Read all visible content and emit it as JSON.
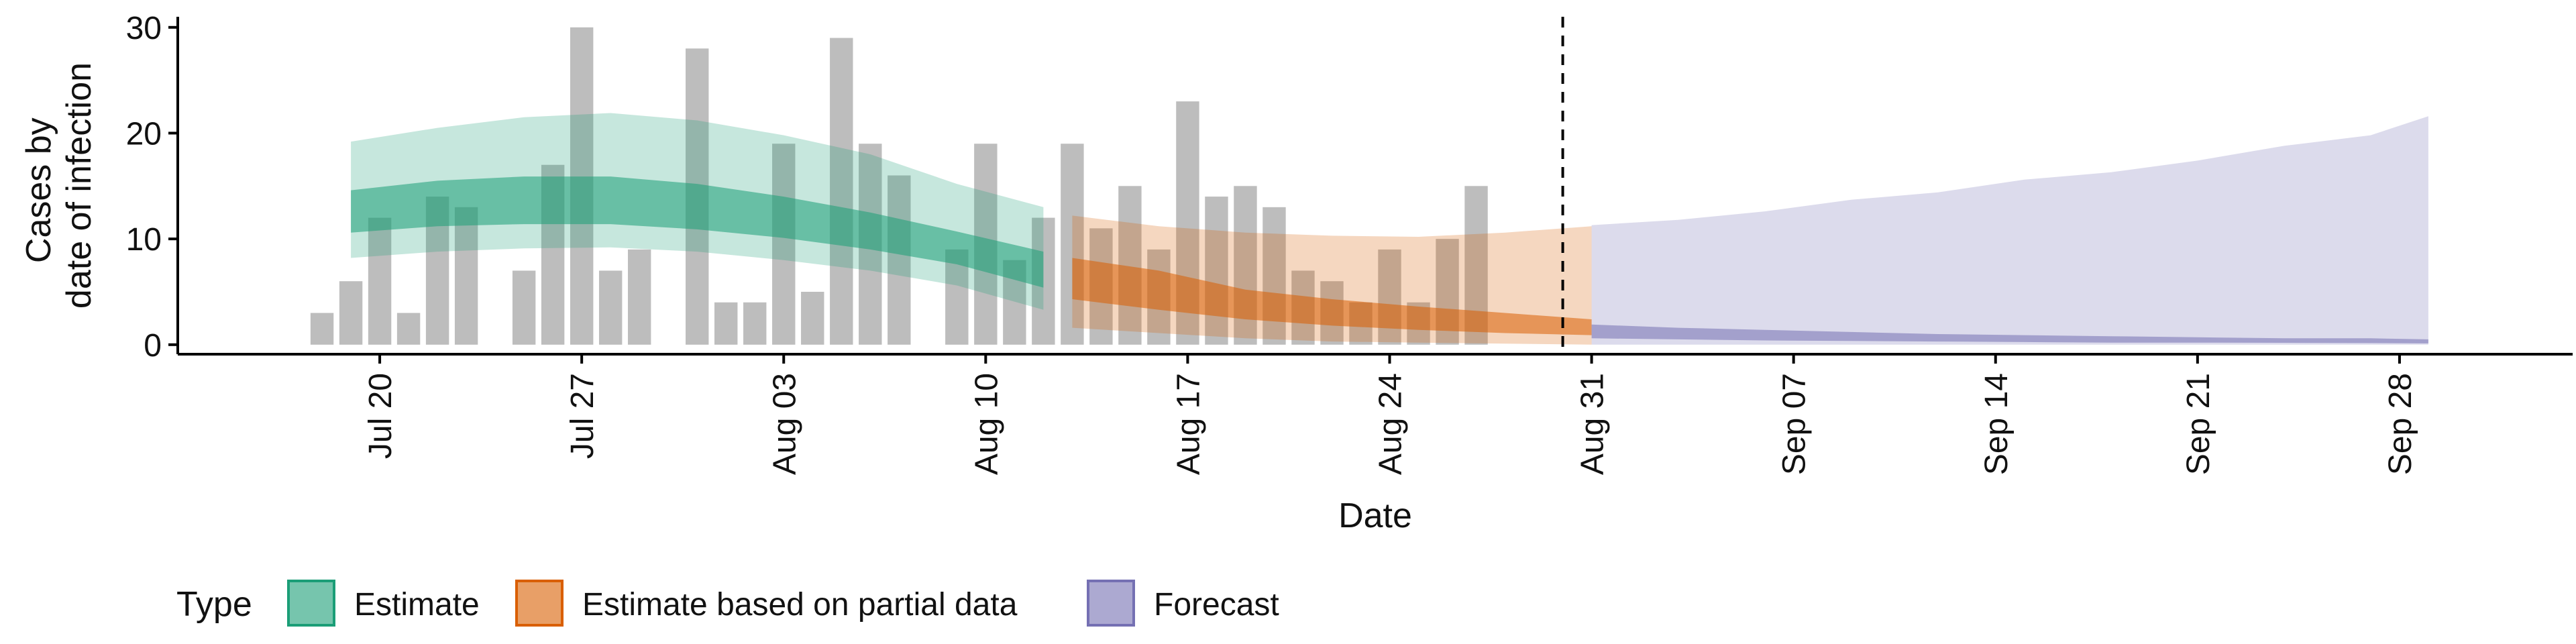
{
  "chart_data": {
    "type": "area",
    "xlabel": "Date",
    "ylabel_lines": [
      "Cases by",
      "date of infection"
    ],
    "ylim": [
      0,
      31
    ],
    "yticks": [
      0,
      10,
      20,
      30
    ],
    "x_date_start": "2020-07-16",
    "xlim_dates": [
      "2020-07-13",
      "2020-10-04"
    ],
    "xticks": [
      {
        "date": "2020-07-20",
        "label": "Jul 20"
      },
      {
        "date": "2020-07-27",
        "label": "Jul 27"
      },
      {
        "date": "2020-08-03",
        "label": "Aug 03"
      },
      {
        "date": "2020-08-10",
        "label": "Aug 10"
      },
      {
        "date": "2020-08-17",
        "label": "Aug 17"
      },
      {
        "date": "2020-08-24",
        "label": "Aug 24"
      },
      {
        "date": "2020-08-31",
        "label": "Aug 31"
      },
      {
        "date": "2020-09-07",
        "label": "Sep 07"
      },
      {
        "date": "2020-09-14",
        "label": "Sep 14"
      },
      {
        "date": "2020-09-21",
        "label": "Sep 21"
      },
      {
        "date": "2020-09-28",
        "label": "Sep 28"
      }
    ],
    "forecast_line_date": "2020-08-30",
    "bars": {
      "color": "#bdbdbd",
      "start_date": "2020-07-18",
      "values": [
        3,
        6,
        12,
        3,
        14,
        13,
        0,
        7,
        17,
        30,
        7,
        9,
        0,
        28,
        4,
        4,
        19,
        5,
        29,
        19,
        16,
        0,
        9,
        19,
        8,
        12,
        19,
        11,
        15,
        9,
        23,
        14,
        15,
        13,
        7,
        6,
        4,
        9,
        4,
        10,
        15
      ]
    },
    "series": [
      {
        "name": "Estimate",
        "color": "#1b9e77",
        "dates": [
          "2020-07-19",
          "2020-07-22",
          "2020-07-25",
          "2020-07-28",
          "2020-07-31",
          "2020-08-03",
          "2020-08-06",
          "2020-08-09",
          "2020-08-12"
        ],
        "upper90": [
          19.2,
          20.5,
          21.5,
          21.9,
          21.2,
          19.8,
          18.0,
          15.2,
          13.0
        ],
        "upper50": [
          14.6,
          15.5,
          15.9,
          15.9,
          15.2,
          14.0,
          12.5,
          10.7,
          8.8
        ],
        "lower50": [
          10.6,
          11.2,
          11.4,
          11.4,
          10.9,
          10.1,
          9.0,
          7.6,
          5.4
        ],
        "lower90": [
          8.2,
          8.8,
          9.1,
          9.2,
          8.8,
          8.0,
          7.0,
          5.6,
          3.3
        ]
      },
      {
        "name": "Estimate based on partial data",
        "color": "#d95f02",
        "dates": [
          "2020-08-13",
          "2020-08-16",
          "2020-08-19",
          "2020-08-22",
          "2020-08-25",
          "2020-08-28",
          "2020-08-31"
        ],
        "upper90": [
          12.2,
          11.2,
          10.6,
          10.3,
          10.2,
          10.6,
          11.2
        ],
        "upper50": [
          8.2,
          7.0,
          5.2,
          4.3,
          3.6,
          3.0,
          2.4
        ],
        "lower50": [
          4.3,
          3.3,
          2.4,
          1.8,
          1.4,
          1.1,
          0.9
        ],
        "lower90": [
          1.6,
          1.1,
          0.6,
          0.3,
          0.2,
          0.1,
          0.0
        ]
      },
      {
        "name": "Forecast",
        "color": "#7570b3",
        "dates": [
          "2020-08-31",
          "2020-09-03",
          "2020-09-06",
          "2020-09-09",
          "2020-09-12",
          "2020-09-15",
          "2020-09-18",
          "2020-09-21",
          "2020-09-24",
          "2020-09-27",
          "2020-09-29"
        ],
        "upper90": [
          11.3,
          11.8,
          12.6,
          13.7,
          14.4,
          15.6,
          16.3,
          17.4,
          18.8,
          19.8,
          21.6
        ],
        "upper50": [
          1.9,
          1.6,
          1.4,
          1.2,
          1.0,
          0.9,
          0.8,
          0.7,
          0.6,
          0.6,
          0.5
        ],
        "lower50": [
          0.6,
          0.5,
          0.4,
          0.35,
          0.3,
          0.25,
          0.2,
          0.2,
          0.18,
          0.15,
          0.12
        ],
        "lower90": [
          0.0,
          0.0,
          0.0,
          0.0,
          0.0,
          0.0,
          0.0,
          0.0,
          0.0,
          0.0,
          0.0
        ]
      }
    ],
    "legend": {
      "position": "bottom-left",
      "title": "Type",
      "items": [
        "Estimate",
        "Estimate based on partial data",
        "Forecast"
      ]
    },
    "grid": false
  }
}
